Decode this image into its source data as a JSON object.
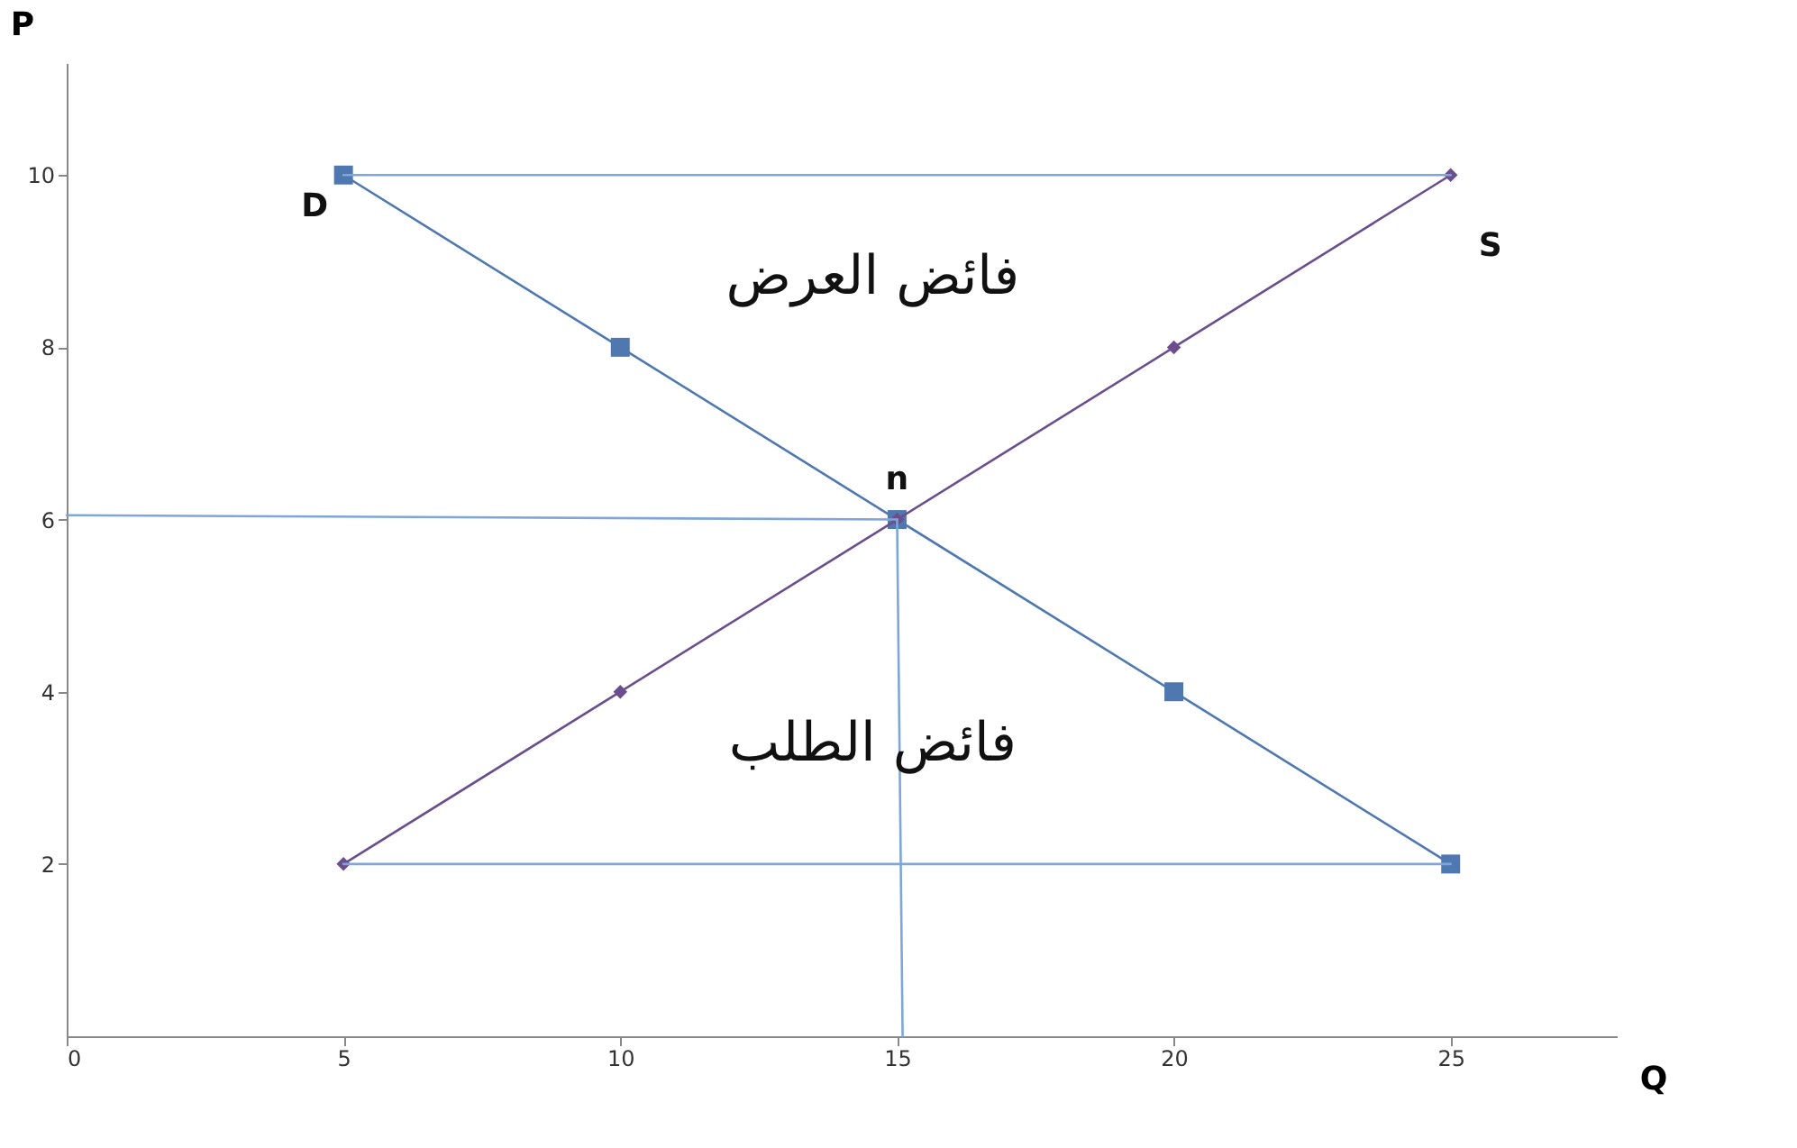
{
  "chart_data": {
    "type": "line",
    "xlabel": "Q",
    "ylabel": "P",
    "xlim": [
      0,
      28
    ],
    "xticks": [
      0,
      5,
      10,
      15,
      20,
      25
    ],
    "ylim": [
      0,
      11.3
    ],
    "yticks": [
      2,
      4,
      6,
      8,
      10
    ],
    "grid": false,
    "series": [
      {
        "name": "D",
        "color": "#4f78b0",
        "marker": "square",
        "x": [
          5,
          10,
          15,
          20,
          25
        ],
        "values": [
          10,
          8,
          6,
          4,
          2
        ]
      },
      {
        "name": "S",
        "color": "#6a4f8c",
        "marker": "diamond",
        "x": [
          5,
          10,
          15,
          20,
          25
        ],
        "values": [
          2,
          4,
          6,
          8,
          10
        ]
      },
      {
        "color": "#7ea6d8",
        "marker": "none",
        "x": [
          5,
          25
        ],
        "values": [
          10,
          10
        ]
      },
      {
        "color": "#7ea6d8",
        "marker": "none",
        "x": [
          5,
          25
        ],
        "values": [
          2,
          2
        ]
      },
      {
        "color": "#7ea6d8",
        "marker": "none",
        "x": [
          0,
          15
        ],
        "values": [
          6.05,
          6
        ]
      },
      {
        "color": "#7ea6d8",
        "marker": "none",
        "x": [
          15,
          15.1
        ],
        "values": [
          6,
          0
        ]
      }
    ],
    "annotations": [
      "فائض العرض",
      "فائض الطلب",
      {
        "text": "n",
        "x": 15,
        "y": 6
      }
    ]
  }
}
